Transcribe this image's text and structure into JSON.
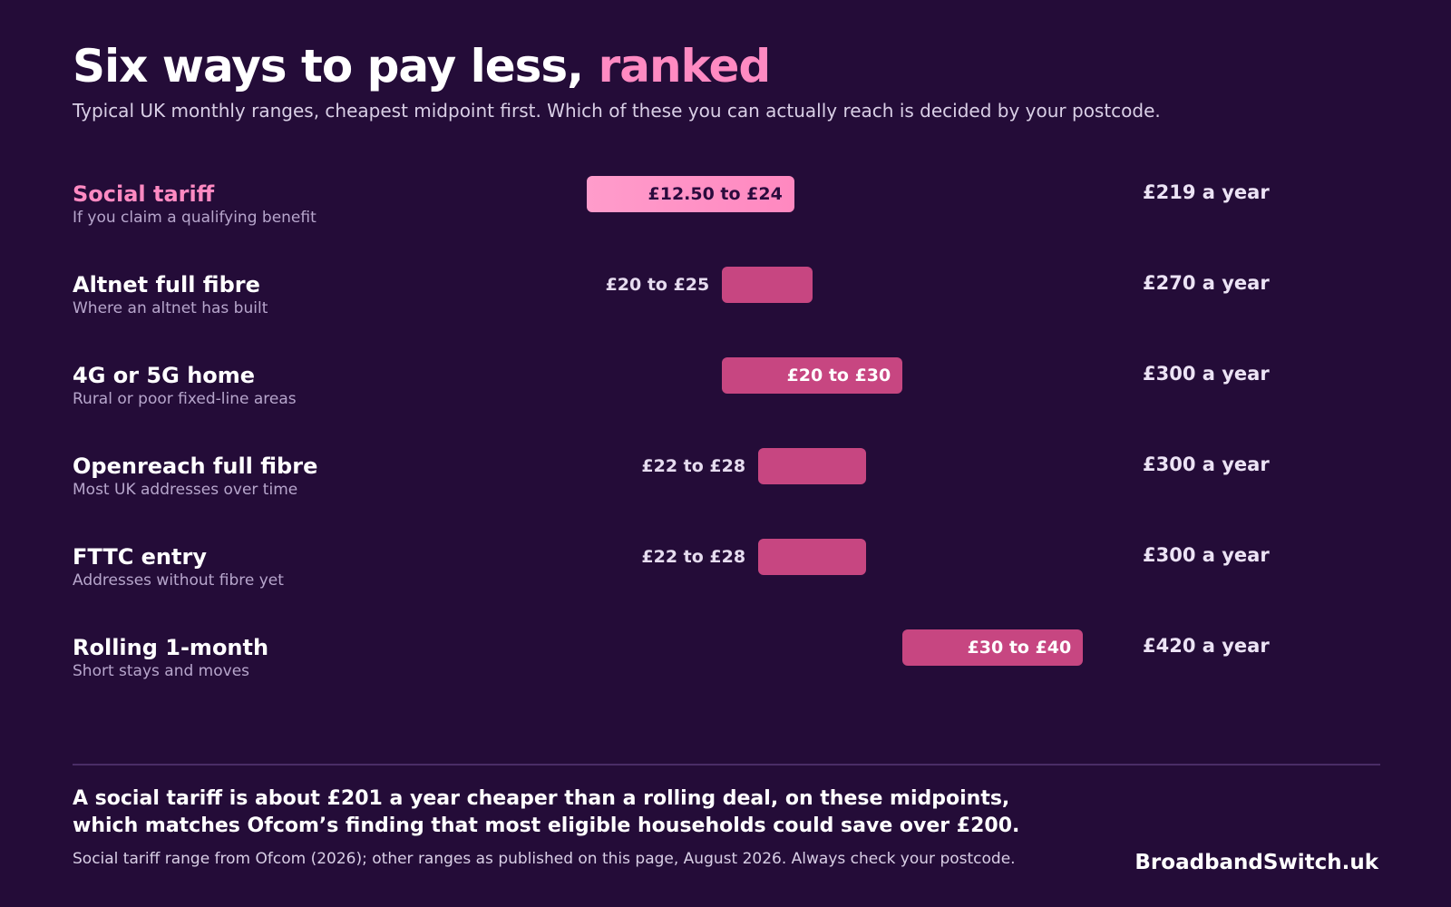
{
  "header": {
    "title_main": "Six ways to pay less, ",
    "title_accent": "ranked",
    "subtitle": "Typical UK monthly ranges, cheapest midpoint first.  Which of these you can actually reach is decided by your postcode."
  },
  "colors": {
    "background": "#240c38",
    "accent": "#ff8ac2",
    "bar": "#c74681",
    "bar_highlight": "#ff9ccb"
  },
  "chart_data": {
    "type": "bar",
    "orientation": "horizontal-range",
    "title": "Six ways to pay less, ranked",
    "x_unit": "£ per month",
    "categories": [
      "Social tariff",
      "Altnet full fibre",
      "4G or 5G home",
      "Openreach full fibre",
      "FTTC entry",
      "Rolling 1-month"
    ],
    "descriptions": [
      "If you claim a qualifying benefit",
      "Where an altnet has built",
      "Rural or poor fixed-line areas",
      "Most UK addresses over time",
      "Addresses without fibre yet",
      "Short stays and moves"
    ],
    "series": [
      {
        "values": [
          [
            12.5,
            24
          ],
          [
            20,
            25
          ],
          [
            20,
            30
          ],
          [
            22,
            28
          ],
          [
            22,
            28
          ],
          [
            30,
            40
          ]
        ]
      }
    ],
    "range_labels": [
      "£12.50 to £24",
      "£20 to £25",
      "£20 to £30",
      "£22 to £28",
      "£22 to £28",
      "£30 to £40"
    ],
    "yearly_labels": [
      "£219 a year",
      "£270 a year",
      "£300 a year",
      "£300 a year",
      "£300 a year",
      "£420 a year"
    ],
    "highlight_index": 0,
    "grid": false,
    "legend": "none"
  },
  "footer": {
    "conclusion_line1": "A social tariff is about £201 a year cheaper than a rolling deal, on these midpoints,",
    "conclusion_line2": "which matches Ofcom’s finding that most eligible households could save over £200.",
    "source": "Social tariff range from Ofcom (2026); other ranges as published on this page, August 2026.  Always check your postcode.",
    "brand": "BroadbandSwitch.uk"
  }
}
